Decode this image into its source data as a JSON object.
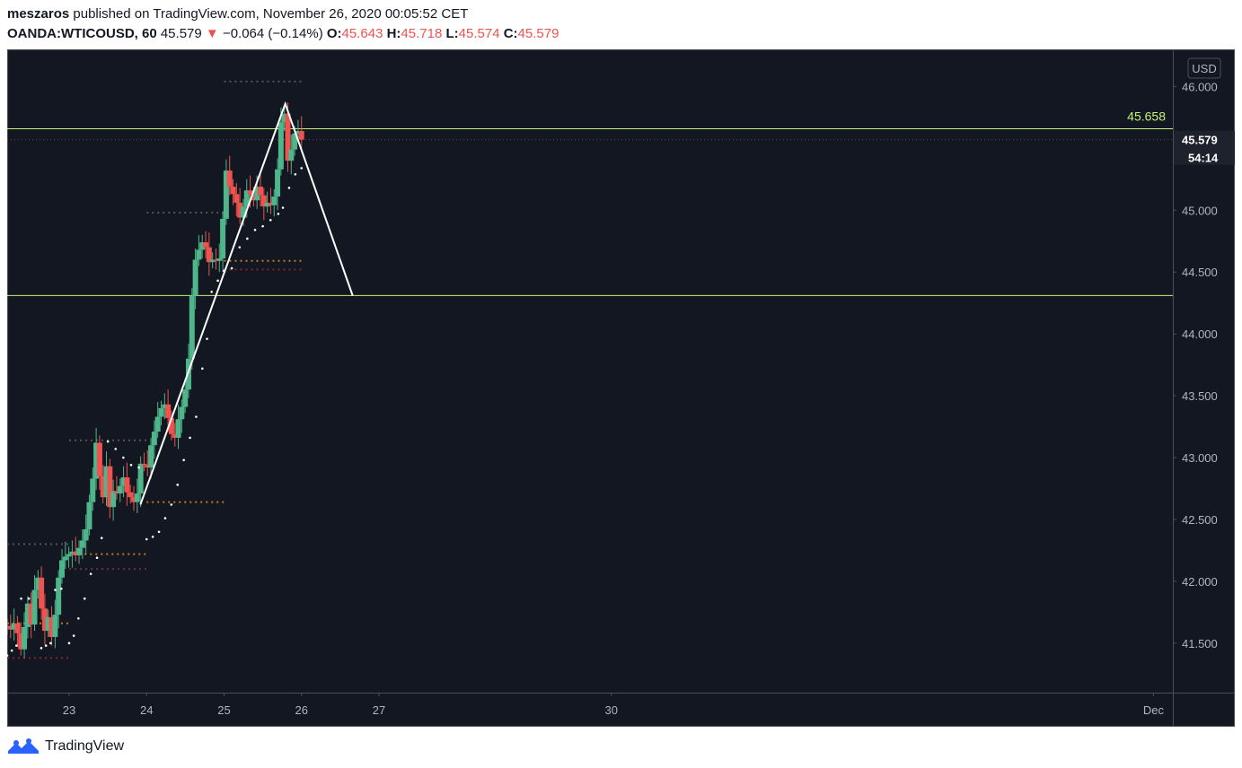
{
  "header": {
    "author": "meszaros",
    "published_text": "published on TradingView.com, November 26, 2020 00:05:52 CET",
    "symbol": "OANDA:WTICOUSD, 60",
    "last": "45.579",
    "arrow": "▼",
    "change": "−0.064 (−0.14%)",
    "o_label": "O:",
    "o_value": "45.643",
    "h_label": "H:",
    "h_value": "45.718",
    "l_label": "L:",
    "l_value": "45.574",
    "c_label": "C:",
    "c_value": "45.579"
  },
  "currency_button": "USD",
  "footer": {
    "brand": "TradingView"
  },
  "colors": {
    "background": "#131722",
    "up": "#26a69a",
    "up_body": "#4fb58a",
    "down": "#ef5350",
    "level_line": "#c5f07a",
    "pattern_line": "#ffffff",
    "psar": "#ffffff",
    "grid_text": "#b2b5be"
  },
  "chart_data": {
    "type": "candlestick",
    "title": "OANDA:WTICOUSD, 60",
    "x_ticks": [
      "23",
      "24",
      "25",
      "26",
      "27",
      "30",
      "Dec"
    ],
    "x_tick_days": [
      23,
      24,
      25,
      26,
      27,
      30,
      37
    ],
    "y_ticks": [
      "46.000",
      "45.000",
      "44.500",
      "44.000",
      "43.500",
      "43.000",
      "42.500",
      "42.000",
      "41.500"
    ],
    "y_tick_values": [
      46.0,
      45.0,
      44.5,
      44.0,
      43.5,
      43.0,
      42.5,
      42.0,
      41.5
    ],
    "ylim": [
      41.1,
      46.3
    ],
    "xlim_days": [
      22.2,
      37.25
    ],
    "horizontal_levels": [
      {
        "price": 45.658,
        "label": "45.658",
        "kind": "label-inside"
      },
      {
        "price": 44.31,
        "label": "",
        "kind": "plain"
      }
    ],
    "last_price_label": "45.579",
    "countdown_label": "54:14",
    "pattern_line": [
      {
        "day": 23.92,
        "price": 42.62
      },
      {
        "day": 25.79,
        "price": 45.86
      },
      {
        "day": 26.66,
        "price": 44.31
      }
    ],
    "closes": [
      41.64,
      41.61,
      41.66,
      41.58,
      41.45,
      41.63,
      41.82,
      41.65,
      41.93,
      42.03,
      41.78,
      41.6,
      41.71,
      41.55,
      41.73,
      42.03,
      42.17,
      42.2,
      42.22,
      42.24,
      42.21,
      42.27,
      42.33,
      42.42,
      42.64,
      42.83,
      43.12,
      42.85,
      42.68,
      42.93,
      42.6,
      42.73,
      42.71,
      42.77,
      42.84,
      42.72,
      42.68,
      42.64,
      42.71,
      42.95,
      42.94,
      42.92,
      43.1,
      43.21,
      43.33,
      43.4,
      43.43,
      43.32,
      43.19,
      43.16,
      43.31,
      43.41,
      43.55,
      43.8,
      44.31,
      44.6,
      44.68,
      44.74,
      44.7,
      44.58,
      44.6,
      44.59,
      44.61,
      44.93,
      45.32,
      45.19,
      45.13,
      45.06,
      44.94,
      45.03,
      45.16,
      45.13,
      45.08,
      45.19,
      45.12,
      45.03,
      45.06,
      45.04,
      45.11,
      45.33,
      45.71,
      45.78,
      45.4,
      45.49,
      45.62,
      45.64,
      45.57
    ],
    "series": [
      {
        "name": "psar",
        "kind": "dots",
        "values": [
          {
            "day": 22.2,
            "price": 41.4
          },
          {
            "day": 22.26,
            "price": 41.44
          },
          {
            "day": 22.32,
            "price": 41.48
          },
          {
            "day": 22.38,
            "price": 41.86
          },
          {
            "day": 22.48,
            "price": 41.86
          },
          {
            "day": 22.64,
            "price": 41.46
          },
          {
            "day": 22.7,
            "price": 41.48
          },
          {
            "day": 22.76,
            "price": 41.5
          },
          {
            "day": 22.82,
            "price": 41.93
          },
          {
            "day": 22.9,
            "price": 41.94
          },
          {
            "day": 23.0,
            "price": 41.5
          },
          {
            "day": 23.06,
            "price": 41.56
          },
          {
            "day": 23.12,
            "price": 41.7
          },
          {
            "day": 23.2,
            "price": 41.86
          },
          {
            "day": 23.28,
            "price": 42.06
          },
          {
            "day": 23.36,
            "price": 42.19
          },
          {
            "day": 23.42,
            "price": 42.35
          },
          {
            "day": 23.5,
            "price": 43.13
          },
          {
            "day": 23.6,
            "price": 43.07
          },
          {
            "day": 23.7,
            "price": 43.0
          },
          {
            "day": 23.8,
            "price": 42.94
          },
          {
            "day": 23.9,
            "price": 42.92
          },
          {
            "day": 24.0,
            "price": 42.34
          },
          {
            "day": 24.08,
            "price": 42.36
          },
          {
            "day": 24.16,
            "price": 42.4
          },
          {
            "day": 24.24,
            "price": 42.51
          },
          {
            "day": 24.32,
            "price": 42.62
          },
          {
            "day": 24.4,
            "price": 42.78
          },
          {
            "day": 24.48,
            "price": 42.98
          },
          {
            "day": 24.56,
            "price": 43.16
          },
          {
            "day": 24.64,
            "price": 43.33
          },
          {
            "day": 24.72,
            "price": 43.72
          },
          {
            "day": 24.78,
            "price": 43.96
          },
          {
            "day": 24.84,
            "price": 44.34
          },
          {
            "day": 24.92,
            "price": 44.43
          },
          {
            "day": 25.0,
            "price": 44.51
          },
          {
            "day": 25.1,
            "price": 44.53
          },
          {
            "day": 25.2,
            "price": 44.7
          },
          {
            "day": 25.3,
            "price": 44.77
          },
          {
            "day": 25.4,
            "price": 44.84
          },
          {
            "day": 25.5,
            "price": 44.87
          },
          {
            "day": 25.6,
            "price": 44.92
          },
          {
            "day": 25.7,
            "price": 44.97
          },
          {
            "day": 25.76,
            "price": 45.02
          },
          {
            "day": 25.84,
            "price": 45.18
          },
          {
            "day": 25.92,
            "price": 45.29
          },
          {
            "day": 26.0,
            "price": 45.34
          }
        ]
      },
      {
        "name": "pivot-grey",
        "kind": "dotted-levels",
        "values": [
          {
            "start": 22.2,
            "end": 23.0,
            "price": 42.3
          },
          {
            "start": 23.0,
            "end": 24.0,
            "price": 43.14
          },
          {
            "start": 24.0,
            "end": 25.0,
            "price": 44.98
          },
          {
            "start": 25.0,
            "end": 26.0,
            "price": 46.04
          }
        ]
      },
      {
        "name": "pivot-orange",
        "kind": "dotted-levels",
        "values": [
          {
            "start": 22.2,
            "end": 23.0,
            "price": 41.66
          },
          {
            "start": 23.2,
            "end": 24.0,
            "price": 42.22
          },
          {
            "start": 24.0,
            "end": 25.0,
            "price": 42.64
          },
          {
            "start": 25.0,
            "end": 26.0,
            "price": 44.59
          }
        ]
      },
      {
        "name": "pivot-red",
        "kind": "dotted-levels",
        "values": [
          {
            "start": 22.2,
            "end": 23.0,
            "price": 41.38
          },
          {
            "start": 23.0,
            "end": 24.0,
            "price": 42.1
          },
          {
            "start": 25.0,
            "end": 26.0,
            "price": 44.52
          }
        ]
      }
    ]
  }
}
